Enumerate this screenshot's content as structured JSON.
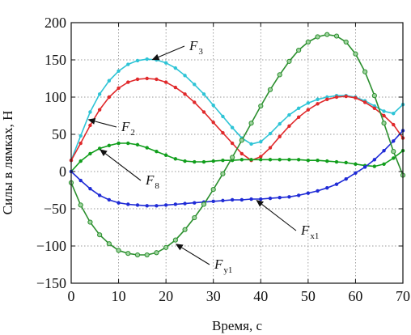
{
  "chart_data": {
    "type": "line",
    "xlabel": "Время, с",
    "ylabel": "Силы в лямках, Н",
    "xlim": [
      0,
      70
    ],
    "ylim": [
      -150,
      200
    ],
    "xticks": [
      0,
      10,
      20,
      30,
      40,
      50,
      60,
      70
    ],
    "yticks": [
      -150,
      -100,
      -50,
      0,
      50,
      100,
      150,
      200
    ],
    "ytick_labels": [
      "−150",
      "−100",
      "−50",
      "0",
      "50",
      "100",
      "150",
      "200"
    ],
    "grid": true,
    "series": [
      {
        "name": "F3",
        "label_main": "F",
        "label_sub": "3",
        "color": "#2ec4d6",
        "marker": "dot",
        "x": [
          0,
          2,
          4,
          6,
          8,
          10,
          12,
          14,
          16,
          18,
          20,
          22,
          24,
          26,
          28,
          30,
          32,
          34,
          36,
          38,
          40,
          42,
          44,
          46,
          48,
          50,
          52,
          54,
          56,
          58,
          60,
          62,
          64,
          66,
          68,
          70
        ],
        "y": [
          15,
          48,
          80,
          104,
          122,
          135,
          144,
          149,
          151,
          150,
          146,
          139,
          129,
          117,
          104,
          89,
          74,
          59,
          45,
          37,
          40,
          51,
          64,
          76,
          85,
          92,
          97,
          100,
          102,
          102,
          100,
          95,
          88,
          81,
          78,
          90
        ]
      },
      {
        "name": "F2",
        "label_main": "F",
        "label_sub": "2",
        "color": "#e0292b",
        "marker": "dot",
        "x": [
          0,
          2,
          4,
          6,
          8,
          10,
          12,
          14,
          16,
          18,
          20,
          22,
          24,
          26,
          28,
          30,
          32,
          34,
          36,
          38,
          40,
          42,
          44,
          46,
          48,
          50,
          52,
          54,
          56,
          58,
          60,
          62,
          64,
          66,
          68,
          70
        ],
        "y": [
          15,
          38,
          62,
          83,
          100,
          112,
          120,
          124,
          125,
          124,
          120,
          113,
          104,
          93,
          80,
          66,
          52,
          38,
          24,
          15,
          20,
          32,
          47,
          61,
          73,
          83,
          91,
          97,
          100,
          101,
          99,
          93,
          85,
          75,
          63,
          45
        ]
      },
      {
        "name": "F8",
        "label_main": "F",
        "label_sub": "8",
        "color": "#119e1c",
        "marker": "dot",
        "x": [
          0,
          2,
          4,
          6,
          8,
          10,
          12,
          14,
          16,
          18,
          20,
          22,
          24,
          26,
          28,
          30,
          32,
          34,
          36,
          38,
          40,
          42,
          44,
          46,
          48,
          50,
          52,
          54,
          56,
          58,
          60,
          62,
          64,
          66,
          68,
          70
        ],
        "y": [
          0,
          14,
          24,
          31,
          35,
          38,
          38,
          36,
          32,
          27,
          22,
          17,
          14,
          13,
          13,
          14,
          15,
          15,
          16,
          16,
          16,
          16,
          16,
          16,
          16,
          15,
          15,
          14,
          13,
          12,
          10,
          8,
          7,
          10,
          18,
          28
        ]
      },
      {
        "name": "Fx1",
        "label_main": "F",
        "label_sub": "x1",
        "color": "#1f2bd6",
        "marker": "dot",
        "x": [
          0,
          2,
          4,
          6,
          8,
          10,
          12,
          14,
          16,
          18,
          20,
          22,
          24,
          26,
          28,
          30,
          32,
          34,
          36,
          38,
          40,
          42,
          44,
          46,
          48,
          50,
          52,
          54,
          56,
          58,
          60,
          62,
          64,
          66,
          68,
          70
        ],
        "y": [
          0,
          -12,
          -23,
          -32,
          -38,
          -42,
          -44,
          -45,
          -46,
          -46,
          -45,
          -44,
          -43,
          -42,
          -41,
          -40,
          -39,
          -38,
          -38,
          -37,
          -37,
          -36,
          -35,
          -34,
          -32,
          -29,
          -26,
          -22,
          -17,
          -10,
          -2,
          6,
          16,
          28,
          41,
          55
        ]
      },
      {
        "name": "Fy1",
        "label_main": "F",
        "label_sub": "y1",
        "color": "#2b8f2e",
        "marker": "circle",
        "x": [
          0,
          2,
          4,
          6,
          8,
          10,
          12,
          14,
          16,
          18,
          20,
          22,
          24,
          26,
          28,
          30,
          32,
          34,
          36,
          38,
          40,
          42,
          44,
          46,
          48,
          50,
          52,
          54,
          56,
          58,
          60,
          62,
          64,
          66,
          68,
          70
        ],
        "y": [
          -15,
          -45,
          -68,
          -85,
          -97,
          -106,
          -110,
          -112,
          -112,
          -109,
          -102,
          -92,
          -78,
          -62,
          -44,
          -24,
          -3,
          19,
          42,
          65,
          88,
          110,
          130,
          148,
          163,
          174,
          181,
          184,
          182,
          174,
          158,
          134,
          102,
          65,
          27,
          -5
        ]
      }
    ],
    "annotations": [
      {
        "series": "F3",
        "text_x": 234,
        "text_y": 62,
        "point_x": 17,
        "point_y": 150
      },
      {
        "series": "F2",
        "text_x": 150,
        "text_y": 162,
        "point_x": 3.5,
        "point_y": 70
      },
      {
        "series": "F8",
        "text_x": 180,
        "text_y": 228,
        "point_x": 6,
        "point_y": 30
      },
      {
        "series": "Fx1",
        "text_x": 372,
        "text_y": 290,
        "point_x": 39,
        "point_y": -38
      },
      {
        "series": "Fy1",
        "text_x": 265,
        "text_y": 332,
        "point_x": 22,
        "point_y": -97
      }
    ]
  }
}
